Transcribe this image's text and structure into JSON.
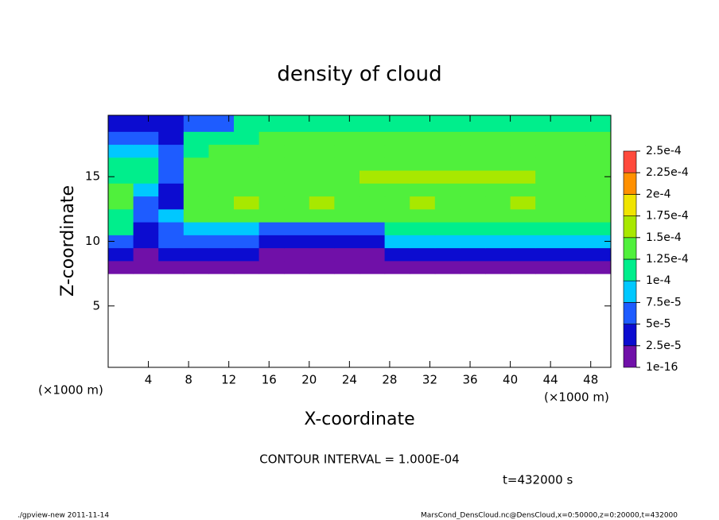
{
  "chart_data": {
    "type": "contour",
    "title": "density of cloud",
    "xlabel": "X-coordinate",
    "ylabel": "Z-coordinate",
    "xunit": "(×1000 m)",
    "yunit": "(×1000 m)",
    "annotation": "CONTOUR INTERVAL = 1.000E-04",
    "time_label": "t=432000 s",
    "footer_left": "./gpview-new  2011-11-14",
    "footer_right": "MarsCond_DensCloud.nc@DensCloud,x=0:50000,z=0:20000,t=432000",
    "xlim": [
      0,
      50
    ],
    "ylim": [
      0.25,
      19.75
    ],
    "xticks": [
      4,
      8,
      12,
      16,
      20,
      24,
      28,
      32,
      36,
      40,
      44,
      48
    ],
    "yticks": [
      5,
      10,
      15
    ],
    "x": [
      1.25,
      3.75,
      6.25,
      8.75,
      11.25,
      13.75,
      16.25,
      18.75,
      21.25,
      23.75,
      26.25,
      28.75,
      31.25,
      33.75,
      36.25,
      38.75,
      41.25,
      43.75,
      46.25,
      48.75
    ],
    "y": [
      1,
      2,
      3,
      4,
      5,
      6,
      7,
      8,
      9,
      10,
      11,
      12,
      13,
      14,
      15,
      16,
      17,
      18,
      19
    ],
    "z": [
      [
        null,
        null,
        null,
        null,
        null,
        null,
        null,
        null,
        null,
        null,
        null,
        null,
        null,
        null,
        null,
        null,
        null,
        null,
        null,
        null
      ],
      [
        null,
        null,
        null,
        null,
        null,
        null,
        null,
        null,
        null,
        null,
        null,
        null,
        null,
        null,
        null,
        null,
        null,
        null,
        null,
        null
      ],
      [
        null,
        null,
        null,
        null,
        null,
        null,
        null,
        null,
        null,
        null,
        null,
        null,
        null,
        null,
        null,
        null,
        null,
        null,
        null,
        null
      ],
      [
        null,
        null,
        null,
        null,
        null,
        null,
        null,
        null,
        null,
        null,
        null,
        null,
        null,
        null,
        null,
        null,
        null,
        null,
        null,
        null
      ],
      [
        null,
        null,
        null,
        null,
        null,
        null,
        null,
        null,
        null,
        null,
        null,
        null,
        null,
        null,
        null,
        null,
        null,
        null,
        null,
        null
      ],
      [
        null,
        null,
        null,
        null,
        null,
        null,
        null,
        null,
        null,
        null,
        null,
        null,
        null,
        null,
        null,
        null,
        null,
        null,
        null,
        null
      ],
      [
        null,
        null,
        null,
        null,
        null,
        null,
        null,
        null,
        null,
        null,
        null,
        null,
        null,
        null,
        null,
        null,
        null,
        null,
        null,
        null
      ],
      [
        1e-05,
        1e-05,
        1e-05,
        1e-05,
        1e-05,
        1e-05,
        1e-05,
        1e-05,
        1e-05,
        1e-05,
        1e-05,
        1e-05,
        1e-05,
        1e-05,
        1e-05,
        1e-05,
        1e-05,
        1e-05,
        1e-05,
        1e-05
      ],
      [
        4e-05,
        2e-05,
        3e-05,
        4e-05,
        4e-05,
        4e-05,
        2e-05,
        2e-05,
        2e-05,
        2e-05,
        2e-05,
        3e-05,
        3e-05,
        3e-05,
        3e-05,
        3e-05,
        3e-05,
        3e-05,
        3e-05,
        3e-05
      ],
      [
        6e-05,
        3e-05,
        5e-05,
        6e-05,
        6e-05,
        6e-05,
        3e-05,
        3e-05,
        3e-05,
        3e-05,
        3e-05,
        8e-05,
        8e-05,
        8e-05,
        8e-05,
        8e-05,
        8e-05,
        8e-05,
        8e-05,
        8e-05
      ],
      [
        0.000105,
        4e-05,
        6e-05,
        8e-05,
        8e-05,
        8e-05,
        6e-05,
        6e-05,
        6e-05,
        6e-05,
        6e-05,
        0.00011,
        0.00011,
        0.00011,
        0.00011,
        0.00011,
        0.00011,
        0.00011,
        0.00011,
        0.00011
      ],
      [
        0.00012,
        6e-05,
        8e-05,
        0.00013,
        0.00013,
        0.00013,
        0.00013,
        0.00013,
        0.00013,
        0.00013,
        0.00013,
        0.00013,
        0.00013,
        0.00013,
        0.00013,
        0.00013,
        0.00013,
        0.00013,
        0.00013,
        0.00013
      ],
      [
        0.00013,
        7e-05,
        3e-05,
        0.00014,
        0.00014,
        0.000155,
        0.00014,
        0.00014,
        0.000155,
        0.00014,
        0.00014,
        0.00014,
        0.000155,
        0.00014,
        0.00014,
        0.00014,
        0.000155,
        0.00014,
        0.00014,
        0.00014
      ],
      [
        0.00013,
        9e-05,
        4e-05,
        0.00013,
        0.000145,
        0.000145,
        0.000145,
        0.000145,
        0.000145,
        0.000145,
        0.000145,
        0.000145,
        0.000145,
        0.000145,
        0.000145,
        0.000145,
        0.000145,
        0.000145,
        0.000145,
        0.00014
      ],
      [
        0.00012,
        0.00012,
        5e-05,
        0.000145,
        0.000145,
        0.000145,
        0.000145,
        0.000145,
        0.000145,
        0.000145,
        0.000155,
        0.000155,
        0.000155,
        0.000155,
        0.000155,
        0.000155,
        0.000155,
        0.000145,
        0.000145,
        0.00014
      ],
      [
        0.00011,
        0.0001,
        6e-05,
        0.00014,
        0.00014,
        0.00014,
        0.00014,
        0.00014,
        0.00014,
        0.00014,
        0.00014,
        0.00014,
        0.00014,
        0.00014,
        0.00014,
        0.00014,
        0.00014,
        0.00014,
        0.00014,
        0.00014
      ],
      [
        8e-05,
        9e-05,
        5e-05,
        0.00012,
        0.000135,
        0.000135,
        0.000135,
        0.000135,
        0.000135,
        0.000135,
        0.000135,
        0.000135,
        0.000135,
        0.000135,
        0.000135,
        0.000135,
        0.000135,
        0.000135,
        0.000135,
        0.000135
      ],
      [
        6e-05,
        7e-05,
        4e-05,
        0.000105,
        0.00012,
        0.00012,
        0.00013,
        0.00013,
        0.00013,
        0.00013,
        0.00013,
        0.00013,
        0.00013,
        0.00013,
        0.00013,
        0.00013,
        0.00013,
        0.00013,
        0.00013,
        0.00013
      ],
      [
        3e-05,
        3e-05,
        3e-05,
        6e-05,
        7e-05,
        0.0001,
        0.000115,
        0.000115,
        0.000115,
        0.000115,
        0.000115,
        0.000115,
        0.000115,
        0.000115,
        0.000105,
        0.000105,
        0.000105,
        0.000105,
        0.000105,
        0.000105
      ]
    ],
    "colorbar": {
      "ticks": [
        {
          "value": 1e-16,
          "label": "1e-16"
        },
        {
          "value": 2.5e-05,
          "label": "2.5e-5"
        },
        {
          "value": 5e-05,
          "label": "5e-5"
        },
        {
          "value": 7.5e-05,
          "label": "7.5e-5"
        },
        {
          "value": 0.0001,
          "label": "1e-4"
        },
        {
          "value": 0.000125,
          "label": "1.25e-4"
        },
        {
          "value": 0.00015,
          "label": "1.5e-4"
        },
        {
          "value": 0.000175,
          "label": "1.75e-4"
        },
        {
          "value": 0.0002,
          "label": "2e-4"
        },
        {
          "value": 0.000225,
          "label": "2.25e-4"
        },
        {
          "value": 0.00025,
          "label": "2.5e-4"
        }
      ],
      "colors": [
        "#7010a8",
        "#0c0cd0",
        "#1e5cff",
        "#00c8ff",
        "#00ee8c",
        "#50f03c",
        "#a8e800",
        "#f0e400",
        "#ff9000",
        "#ff4a3c",
        "#ff9a9a"
      ]
    }
  }
}
